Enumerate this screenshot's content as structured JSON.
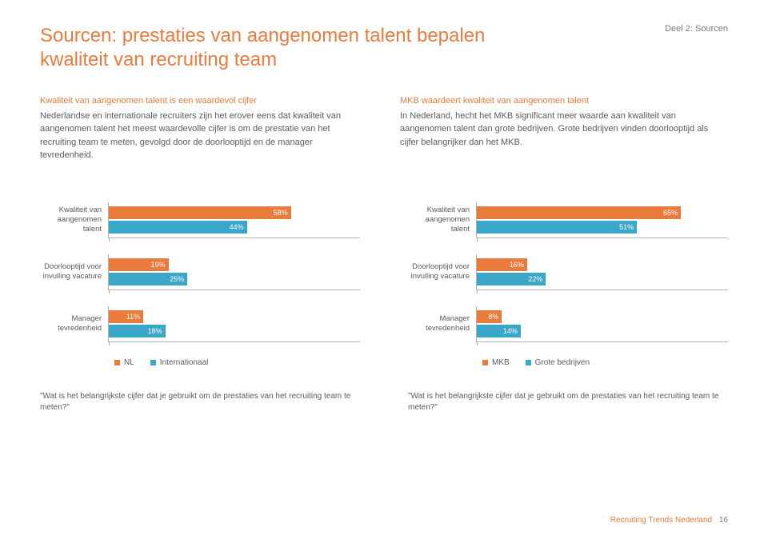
{
  "section_tag": "Deel 2: Sourcen",
  "title": "Sourcen: prestaties van aangenomen talent bepalen kwaliteit van recruiting team",
  "intro": {
    "left": {
      "heading": "Kwaliteit van aangenomen talent is een waardevol cijfer",
      "body": "Nederlandse en internationale recruiters zijn het erover eens dat kwaliteit van aangenomen talent het meest waardevolle cijfer is om de prestatie van het recruiting team te meten, gevolgd door de doorlooptijd en de manager tevredenheid."
    },
    "right": {
      "heading": "MKB waardeert kwaliteit van aangenomen talent",
      "body": "In Nederland, hecht het MKB significant meer waarde aan kwaliteit van aangenomen talent dan grote bedrijven. Grote bedrijven vinden doorlooptijd als cijfer belangrijker dan het MKB."
    }
  },
  "charts": {
    "chart1": {
      "colors": {
        "series_a": "#e97b3c",
        "series_b": "#3aa6c8"
      },
      "max": 80,
      "groups": [
        {
          "label": "Kwaliteit van aangenomen talent",
          "a": 58,
          "b": 44
        },
        {
          "label": "Doorlooptijd voor invulling vacature",
          "a": 19,
          "b": 25
        },
        {
          "label": "Manager tevredenheid",
          "a": 11,
          "b": 18
        }
      ],
      "legend": {
        "a": "NL",
        "b": "Internationaal"
      }
    },
    "chart2": {
      "colors": {
        "series_a": "#e97b3c",
        "series_b": "#3aa6c8"
      },
      "max": 80,
      "groups": [
        {
          "label": "Kwaliteit van aangenomen talent",
          "a": 65,
          "b": 51
        },
        {
          "label": "Doorlooptijd voor invulling vacature",
          "a": 16,
          "b": 22
        },
        {
          "label": "Manager tevredenheid",
          "a": 8,
          "b": 14
        }
      ],
      "legend": {
        "a": "MKB",
        "b": "Grote bedrijven"
      }
    }
  },
  "questions": {
    "left": "\"Wat is het belangrijkste cijfer dat je gebruikt om de prestaties van het recruiting team te meten?\"",
    "right": "\"Wat is het belangrijkste cijfer dat je gebruikt om de prestaties van het recruiting team te meten?\""
  },
  "footer": {
    "text": "Recruiting Trends Nederland",
    "page": "16"
  }
}
